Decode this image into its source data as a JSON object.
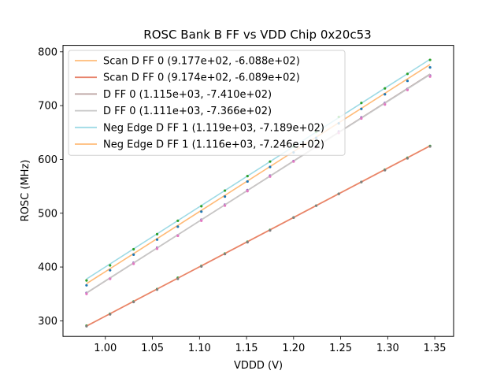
{
  "chart_data": {
    "type": "line",
    "title": "ROSC Bank B FF vs VDD Chip 0x20c53",
    "xlabel": "VDDD (V)",
    "ylabel": "ROSC (MHz)",
    "xlim": [
      0.955,
      1.37
    ],
    "ylim": [
      271,
      812
    ],
    "xticks": [
      1.0,
      1.05,
      1.1,
      1.15,
      1.2,
      1.25,
      1.3,
      1.35
    ],
    "xtick_labels": [
      "1.00",
      "1.05",
      "1.10",
      "1.15",
      "1.20",
      "1.25",
      "1.30",
      "1.35"
    ],
    "yticks": [
      300,
      400,
      500,
      600,
      700,
      800
    ],
    "ytick_labels": [
      "300",
      "400",
      "500",
      "600",
      "700",
      "800"
    ],
    "legend_position": "top-left",
    "fit_range": [
      0.98,
      1.345
    ],
    "x": [
      0.98,
      1.005,
      1.03,
      1.055,
      1.077,
      1.102,
      1.127,
      1.151,
      1.175,
      1.2,
      1.224,
      1.248,
      1.272,
      1.297,
      1.321,
      1.345
    ],
    "series": [
      {
        "name": "Scan D FF 0 (9.177e+02, -6.088e+02)",
        "slope": 917.7,
        "intercept": -608.8,
        "color": "#ffbb78",
        "point_color": "#2ca02c",
        "values": [
          291,
          313,
          336,
          359,
          380,
          402,
          425,
          447,
          469,
          492,
          514,
          536,
          558,
          581,
          603,
          625
        ]
      },
      {
        "name": "Scan D FF 0 (9.174e+02, -6.089e+02)",
        "slope": 917.4,
        "intercept": -608.9,
        "color": "#e7826b",
        "point_color": "#7f7f7f",
        "values": [
          290,
          312,
          335,
          358,
          378,
          401,
          424,
          446,
          468,
          492,
          514,
          536,
          558,
          580,
          602,
          624
        ]
      },
      {
        "name": "D FF 0 (1.115e+03, -7.410e+02)",
        "slope": 1115,
        "intercept": -741.0,
        "color": "#b9a09f",
        "point_color": "#9467bd",
        "values": [
          352,
          379,
          408,
          436,
          459,
          488,
          516,
          543,
          570,
          597,
          625,
          652,
          678,
          705,
          731,
          756
        ]
      },
      {
        "name": "D FF 0 (1.111e+03, -7.366e+02)",
        "slope": 1111,
        "intercept": -736.6,
        "color": "#c7c7c7",
        "point_color": "#e377c2",
        "values": [
          350,
          378,
          406,
          434,
          458,
          486,
          514,
          541,
          568,
          596,
          622,
          649,
          676,
          702,
          729,
          754
        ]
      },
      {
        "name": "Neg Edge D FF 1 (1.119e+03, -7.189e+02)",
        "slope": 1119,
        "intercept": -718.9,
        "color": "#9edae5",
        "point_color": "#2ca02c",
        "values": [
          375,
          403,
          433,
          461,
          486,
          513,
          542,
          569,
          596,
          624,
          651,
          679,
          705,
          732,
          759,
          785
        ]
      },
      {
        "name": "Neg Edge D FF 1 (1.116e+03, -7.246e+02)",
        "slope": 1116,
        "intercept": -724.6,
        "color": "#ffbb78",
        "point_color": "#1f77b4",
        "values": [
          366,
          394,
          423,
          451,
          475,
          503,
          531,
          559,
          586,
          613,
          640,
          667,
          694,
          721,
          746,
          771
        ]
      }
    ]
  }
}
